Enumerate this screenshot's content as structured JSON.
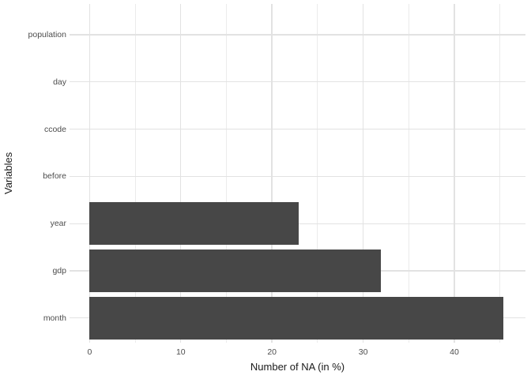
{
  "chart_data": {
    "type": "bar",
    "orientation": "horizontal",
    "title": "",
    "xlabel": "Number of NA (in %)",
    "ylabel": "Variables",
    "categories": [
      "population",
      "day",
      "ccode",
      "before",
      "year",
      "gdp",
      "month"
    ],
    "values": [
      0,
      0,
      0,
      0,
      22.9,
      31.9,
      45.4
    ],
    "x_ticks": [
      0,
      10,
      20,
      30,
      40
    ],
    "x_minor_ticks": [
      5,
      15,
      25,
      35,
      45
    ],
    "xlim": [
      -2.2,
      47.8
    ],
    "grid": "vertical major+minor gridlines, horizontal major gridlines per category, no axis lines, no tick marks",
    "legend": "none",
    "theme": "minimal-white",
    "colors": {
      "bar": "#474747",
      "grid_major": "#E2E2E2",
      "grid_minor": "#EBEBEB",
      "tick_label": "#4D4D4D",
      "axis_title": "#1A1A1A",
      "background": "#FFFFFF"
    }
  }
}
